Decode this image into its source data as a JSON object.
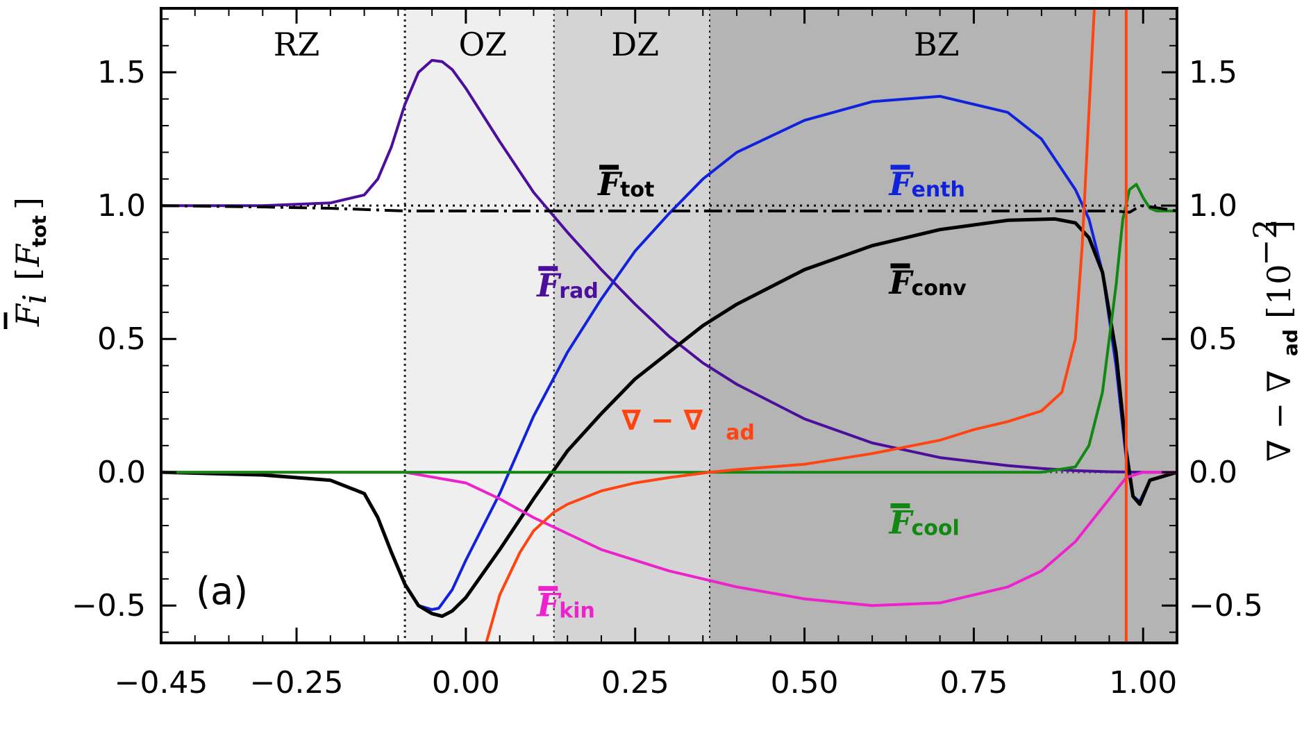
{
  "chart_data": {
    "type": "line",
    "panel_label": "(a)",
    "x_range": [
      -0.45,
      1.05
    ],
    "ylim_left": [
      -0.64,
      1.74
    ],
    "ylim_right": [
      -0.64,
      1.74
    ],
    "x_ticks": [
      -0.45,
      -0.25,
      0.0,
      0.25,
      0.5,
      0.75,
      1.0
    ],
    "x_tick_labels": [
      "−0.45",
      "−0.25",
      "0.00",
      "0.25",
      "0.50",
      "0.75",
      "1.00"
    ],
    "y_ticks": [
      -0.5,
      0.0,
      0.5,
      1.0,
      1.5
    ],
    "y_tick_labels": [
      "−0.5",
      "0.0",
      "0.5",
      "1.0",
      "1.5"
    ],
    "y_right_ticks": [
      -0.5,
      0.0,
      0.5,
      1.0,
      1.5
    ],
    "y_right_tick_labels": [
      "−0.5",
      "0.0",
      "0.5",
      "1.0",
      "1.5"
    ],
    "ylabel_left": {
      "main": "F",
      "sub": "i",
      "bracket_main": "F",
      "bracket_sub": "tot"
    },
    "ylabel_right": {
      "text": "∇ − ∇",
      "sub": "ad",
      "unit": "10",
      "unit_exp": "−2"
    },
    "zones": [
      {
        "name": "RZ",
        "x0": -0.45,
        "x1": -0.09,
        "fill": "#ffffff"
      },
      {
        "name": "OZ",
        "x0": -0.09,
        "x1": 0.13,
        "fill": "#efefef"
      },
      {
        "name": "DZ",
        "x0": 0.13,
        "x1": 0.36,
        "fill": "#d4d4d4"
      },
      {
        "name": "BZ",
        "x0": 0.36,
        "x1": 1.05,
        "fill": "#b4b4b4"
      }
    ],
    "zone_boundaries": [
      -0.09,
      0.13,
      0.36
    ],
    "reference_line": {
      "y": 1.0,
      "style": "dotted"
    },
    "series": [
      {
        "name": "F_rad",
        "label_main": "F",
        "label_sub": "rad",
        "color": "#4b0f9c",
        "x": [
          -0.45,
          -0.3,
          -0.2,
          -0.15,
          -0.13,
          -0.11,
          -0.09,
          -0.07,
          -0.05,
          -0.035,
          -0.02,
          0.0,
          0.05,
          0.1,
          0.15,
          0.2,
          0.25,
          0.3,
          0.35,
          0.4,
          0.5,
          0.6,
          0.7,
          0.8,
          0.85,
          0.9,
          0.95,
          1.0,
          1.05
        ],
        "y": [
          1.0,
          1.0,
          1.01,
          1.04,
          1.1,
          1.22,
          1.38,
          1.5,
          1.545,
          1.54,
          1.51,
          1.44,
          1.24,
          1.05,
          0.9,
          0.76,
          0.63,
          0.51,
          0.41,
          0.33,
          0.2,
          0.11,
          0.055,
          0.025,
          0.014,
          0.006,
          0.002,
          0.0,
          0.0
        ]
      },
      {
        "name": "F_enth",
        "label_main": "F",
        "label_sub": "enth",
        "color": "#1122dd",
        "x": [
          -0.45,
          -0.3,
          -0.2,
          -0.15,
          -0.13,
          -0.11,
          -0.09,
          -0.07,
          -0.05,
          -0.04,
          -0.02,
          0.0,
          0.05,
          0.1,
          0.15,
          0.2,
          0.25,
          0.3,
          0.35,
          0.4,
          0.5,
          0.6,
          0.7,
          0.8,
          0.85,
          0.9,
          0.92,
          0.94,
          0.96,
          0.975,
          0.985,
          0.995,
          1.01,
          1.05
        ],
        "y": [
          0.0,
          -0.01,
          -0.03,
          -0.08,
          -0.17,
          -0.3,
          -0.42,
          -0.5,
          -0.515,
          -0.51,
          -0.44,
          -0.33,
          -0.08,
          0.21,
          0.45,
          0.65,
          0.83,
          0.97,
          1.1,
          1.2,
          1.32,
          1.39,
          1.41,
          1.35,
          1.25,
          1.06,
          0.95,
          0.75,
          0.4,
          0.05,
          -0.09,
          -0.11,
          -0.03,
          0.0
        ]
      },
      {
        "name": "F_conv",
        "label_main": "F",
        "label_sub": "conv",
        "color": "#000000",
        "x": [
          -0.45,
          -0.3,
          -0.2,
          -0.15,
          -0.13,
          -0.11,
          -0.09,
          -0.07,
          -0.05,
          -0.035,
          -0.02,
          0.0,
          0.05,
          0.1,
          0.15,
          0.2,
          0.25,
          0.3,
          0.35,
          0.4,
          0.5,
          0.6,
          0.7,
          0.8,
          0.87,
          0.9,
          0.92,
          0.94,
          0.96,
          0.975,
          0.985,
          0.995,
          1.01,
          1.05
        ],
        "y": [
          0.0,
          -0.01,
          -0.03,
          -0.08,
          -0.17,
          -0.3,
          -0.42,
          -0.5,
          -0.53,
          -0.54,
          -0.52,
          -0.47,
          -0.29,
          -0.1,
          0.08,
          0.22,
          0.35,
          0.45,
          0.55,
          0.63,
          0.76,
          0.85,
          0.91,
          0.945,
          0.95,
          0.935,
          0.88,
          0.75,
          0.45,
          0.08,
          -0.09,
          -0.12,
          -0.03,
          0.0
        ]
      },
      {
        "name": "F_kin",
        "label_main": "F",
        "label_sub": "kin",
        "color": "#ee22cc",
        "x": [
          -0.45,
          -0.09,
          0.0,
          0.05,
          0.1,
          0.15,
          0.2,
          0.3,
          0.4,
          0.5,
          0.6,
          0.7,
          0.8,
          0.85,
          0.9,
          0.95,
          0.975,
          1.0,
          1.05
        ],
        "y": [
          0.0,
          0.0,
          -0.04,
          -0.1,
          -0.17,
          -0.23,
          -0.29,
          -0.37,
          -0.43,
          -0.475,
          -0.5,
          -0.49,
          -0.43,
          -0.37,
          -0.26,
          -0.1,
          -0.02,
          0.0,
          0.0
        ]
      },
      {
        "name": "F_cool",
        "label_main": "F",
        "label_sub": "cool",
        "color": "#118811",
        "x": [
          -0.45,
          0.85,
          0.9,
          0.92,
          0.94,
          0.96,
          0.97,
          0.98,
          0.99,
          1.0,
          1.01,
          1.02,
          1.05
        ],
        "y": [
          0.0,
          0.0,
          0.02,
          0.1,
          0.3,
          0.7,
          0.95,
          1.06,
          1.08,
          1.03,
          0.99,
          0.98,
          0.98
        ]
      },
      {
        "name": "F_tot",
        "label_main": "F",
        "label_sub": "tot",
        "color": "#000000",
        "x": [
          -0.45,
          -0.3,
          -0.2,
          -0.09,
          0.0,
          0.5,
          0.96,
          0.98,
          0.99,
          1.0,
          1.05
        ],
        "y": [
          1.0,
          0.995,
          0.99,
          0.98,
          0.98,
          0.98,
          0.98,
          0.975,
          0.99,
          1.0,
          0.98
        ]
      },
      {
        "name": "grad_minus_grad_ad",
        "label_text": "∇ − ∇",
        "label_sub": "ad",
        "color": "#ff4411",
        "axis": "right",
        "x": [
          0.03,
          0.05,
          0.08,
          0.1,
          0.13,
          0.15,
          0.2,
          0.25,
          0.3,
          0.36,
          0.4,
          0.5,
          0.6,
          0.7,
          0.75,
          0.8,
          0.85,
          0.88,
          0.9,
          0.91,
          0.92,
          0.928
        ],
        "y": [
          -0.64,
          -0.46,
          -0.3,
          -0.22,
          -0.15,
          -0.12,
          -0.07,
          -0.04,
          -0.02,
          0.0,
          0.01,
          0.03,
          0.07,
          0.12,
          0.16,
          0.19,
          0.23,
          0.3,
          0.5,
          0.85,
          1.35,
          1.74
        ]
      }
    ]
  }
}
